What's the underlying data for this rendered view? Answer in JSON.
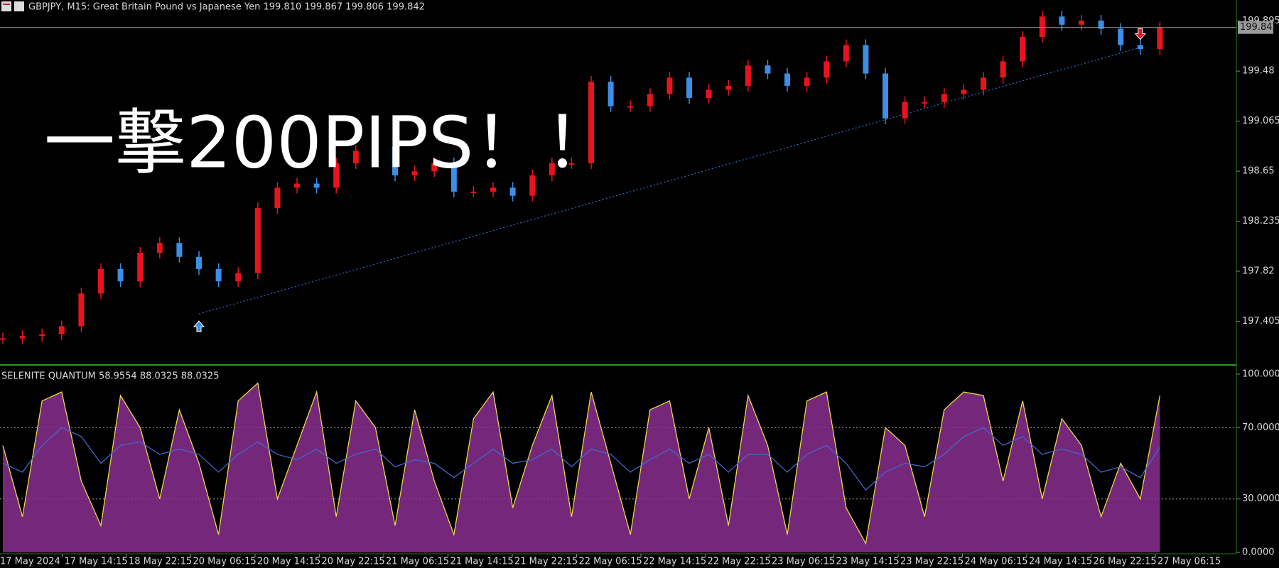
{
  "header": {
    "text": "GBPJPY, M15:  Great Britain Pound vs Japanese Yen  199.810 199.867 199.806 199.842"
  },
  "overlay_text": "一撃200PIPS！！",
  "chart_data": [
    {
      "type": "candlestick",
      "closes": [
        197.263,
        197.283,
        197.297,
        197.364,
        197.635,
        197.838,
        197.736,
        197.973,
        198.054,
        197.939,
        197.838,
        197.736,
        197.804,
        198.344,
        198.513,
        198.547,
        198.513,
        198.716,
        198.818,
        198.851,
        198.615,
        198.649,
        198.716,
        198.48,
        198.48,
        198.513,
        198.446,
        198.615,
        198.716,
        198.716,
        199.392,
        199.189,
        199.189,
        199.291,
        199.426,
        199.257,
        199.325,
        199.358,
        199.527,
        199.46,
        199.358,
        199.426,
        199.561,
        199.696,
        199.46,
        199.088,
        199.223,
        199.223,
        199.291,
        199.325,
        199.426,
        199.561,
        199.764,
        199.933,
        199.865,
        199.899,
        199.831,
        199.696,
        199.662,
        199.842
      ],
      "up_color": "#e8141c",
      "down_color": "#3b8fe6",
      "ylim": [
        197.06,
        200.07
      ],
      "yticks": [
        197.405,
        197.82,
        198.235,
        198.65,
        199.065,
        199.48,
        199.895
      ],
      "current_price": 199.842,
      "trendline": {
        "from": [
          10,
          197.466
        ],
        "to": [
          58,
          199.676
        ],
        "color": "#2f6fd0"
      },
      "signals": [
        {
          "index": 10,
          "price": 197.36,
          "direction": "up",
          "color": "#3b8fe6"
        },
        {
          "index": 58,
          "price": 199.79,
          "direction": "down",
          "color": "#e8141c"
        }
      ]
    },
    {
      "type": "oscillator",
      "title": "SELENITE QUANTUM 58.9554 88.0325 88.0325",
      "series": [
        {
          "color": "#e8d84a",
          "fill": "#8a2f8f",
          "values": [
            60,
            20,
            85,
            90,
            40,
            15,
            88,
            70,
            30,
            80,
            50,
            10,
            85,
            95,
            30,
            60,
            90,
            20,
            85,
            70,
            15,
            80,
            40,
            10,
            75,
            90,
            25,
            60,
            88,
            20,
            90,
            50,
            10,
            80,
            85,
            30,
            70,
            15,
            88,
            60,
            10,
            85,
            90,
            25,
            5,
            70,
            60,
            20,
            80,
            90,
            88,
            40,
            85,
            30,
            75,
            60,
            20,
            50,
            30,
            88
          ]
        },
        {
          "color": "#4466cc",
          "values": [
            50,
            45,
            60,
            70,
            65,
            50,
            60,
            62,
            55,
            58,
            55,
            45,
            55,
            62,
            55,
            52,
            58,
            50,
            55,
            58,
            48,
            52,
            50,
            42,
            50,
            58,
            50,
            52,
            58,
            48,
            58,
            55,
            45,
            52,
            58,
            50,
            55,
            45,
            55,
            55,
            45,
            55,
            60,
            50,
            35,
            45,
            50,
            48,
            55,
            65,
            70,
            60,
            65,
            55,
            58,
            55,
            45,
            48,
            42,
            59
          ]
        }
      ],
      "ylim": [
        0,
        100
      ],
      "yticks": [
        {
          "value": 0,
          "label": "0.0000"
        },
        {
          "value": 30,
          "label": "30.0000"
        },
        {
          "value": 70,
          "label": "70.0000"
        },
        {
          "value": 100,
          "label": "100.0000"
        }
      ],
      "grid_levels": [
        30,
        70
      ]
    }
  ],
  "time_axis": {
    "labels": [
      "17 May 2024",
      "17 May 14:15",
      "18 May 22:15",
      "20 May 06:15",
      "20 May 14:15",
      "20 May 22:15",
      "21 May 06:15",
      "21 May 14:15",
      "21 May 22:15",
      "22 May 06:15",
      "22 May 14:15",
      "22 May 22:15",
      "23 May 06:15",
      "23 May 14:15",
      "23 May 22:15",
      "24 May 06:15",
      "24 May 14:15",
      "26 May 22:15",
      "27 May 06:15"
    ]
  }
}
